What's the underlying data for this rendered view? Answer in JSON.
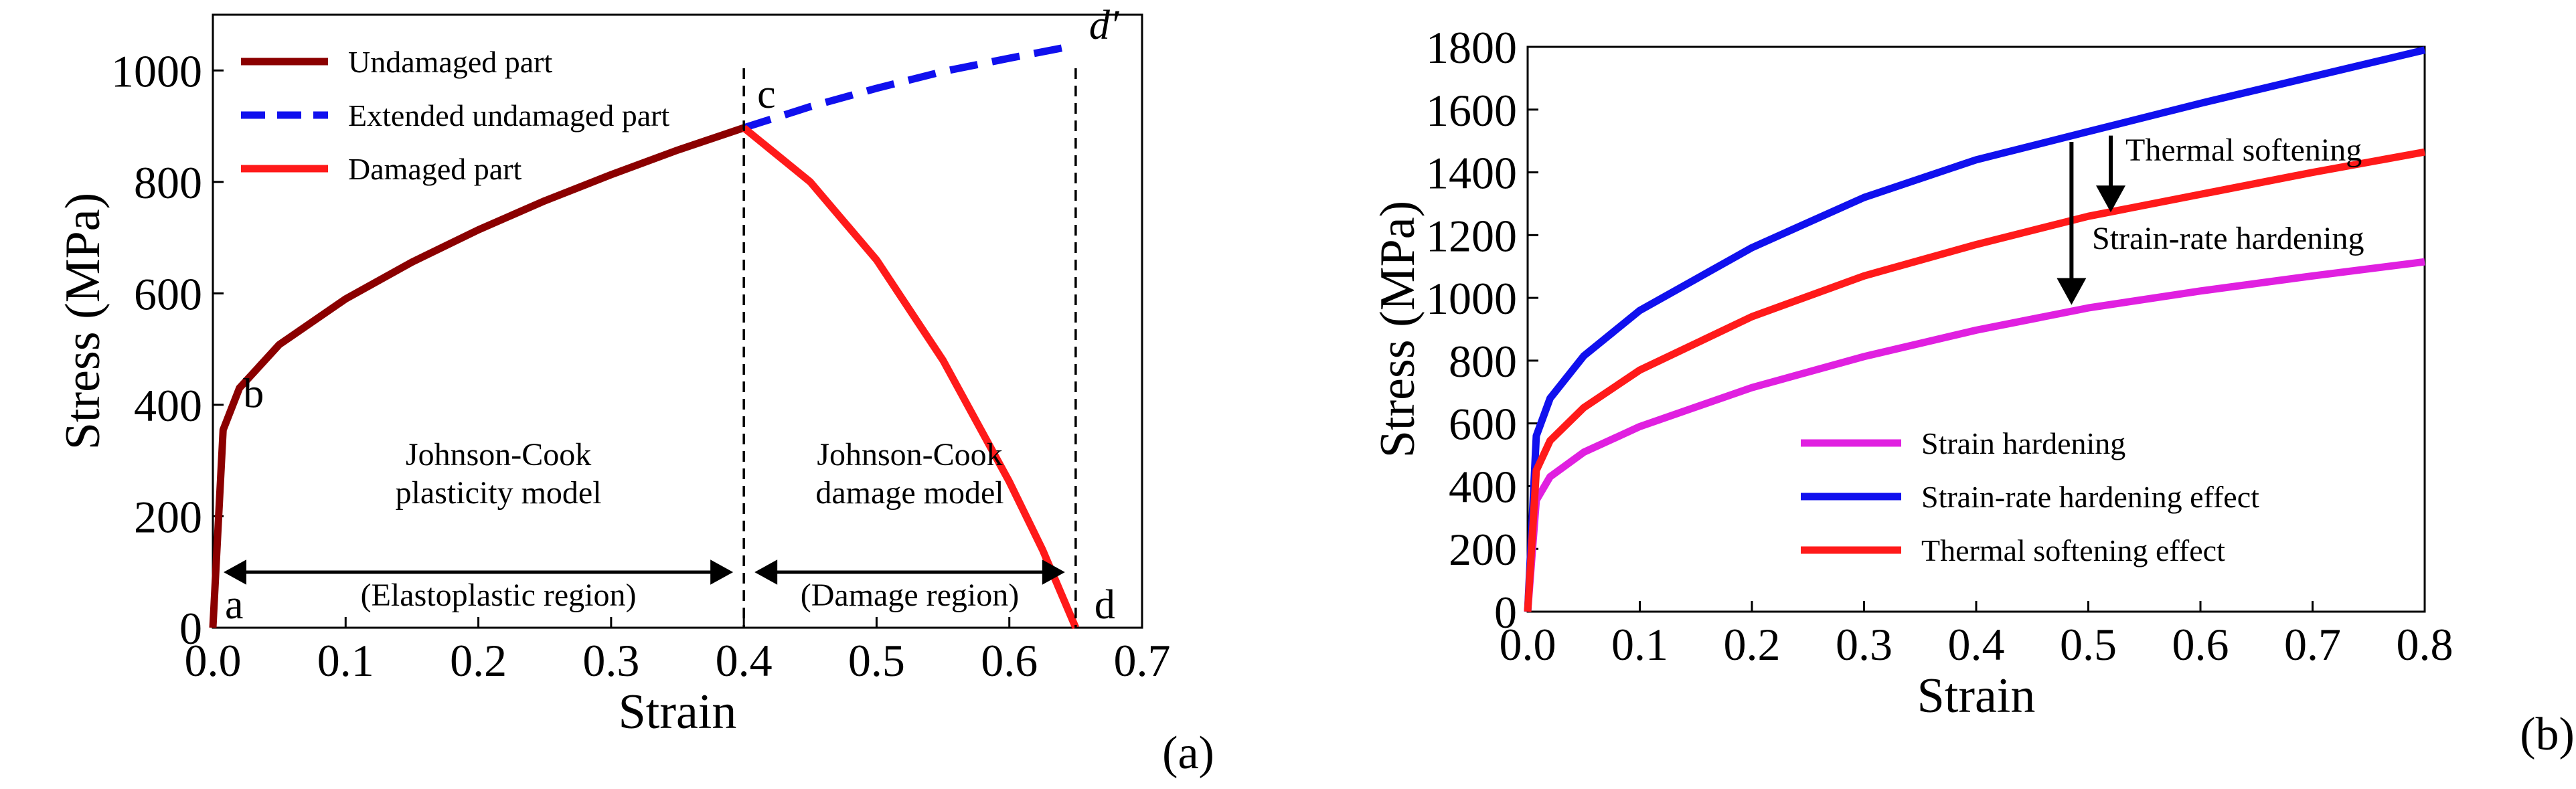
{
  "chart_data": [
    {
      "type": "line",
      "panel_label": "(a)",
      "xlabel": "Strain",
      "ylabel": "Stress (MPa)",
      "xlim": [
        0.0,
        0.7
      ],
      "ylim": [
        0,
        1100
      ],
      "xticks": [
        "0.0",
        "0.1",
        "0.2",
        "0.3",
        "0.4",
        "0.5",
        "0.6",
        "0.7"
      ],
      "yticks": [
        "0",
        "200",
        "400",
        "600",
        "800",
        "1000"
      ],
      "grid": false,
      "legend_placement": "top-left",
      "series": [
        {
          "name": "Undamaged part",
          "color": "#8b0000",
          "style": "solid",
          "points": [
            [
              0.0,
              0
            ],
            [
              0.0077,
              355
            ],
            [
              0.02,
              430
            ],
            [
              0.05,
              508
            ],
            [
              0.1,
              590
            ],
            [
              0.15,
              656
            ],
            [
              0.2,
              714
            ],
            [
              0.25,
              766
            ],
            [
              0.3,
              813
            ],
            [
              0.35,
              857
            ],
            [
              0.4,
              897
            ]
          ]
        },
        {
          "name": "Extended undamaged part",
          "color": "#1010ee",
          "style": "dashed",
          "points": [
            [
              0.4,
              897
            ],
            [
              0.45,
              935
            ],
            [
              0.5,
              968
            ],
            [
              0.55,
              998
            ],
            [
              0.6,
              1022
            ],
            [
              0.65,
              1045
            ]
          ]
        },
        {
          "name": "Damaged part",
          "color": "#ff1a1a",
          "style": "solid",
          "points": [
            [
              0.4,
              897
            ],
            [
              0.45,
              800
            ],
            [
              0.5,
              660
            ],
            [
              0.55,
              480
            ],
            [
              0.6,
              262
            ],
            [
              0.625,
              140
            ],
            [
              0.65,
              0
            ]
          ]
        }
      ],
      "point_labels": [
        {
          "text": "a",
          "x": 0.0,
          "y": 0
        },
        {
          "text": "b",
          "x": 0.0077,
          "y": 355
        },
        {
          "text": "c",
          "x": 0.4,
          "y": 897
        },
        {
          "text": "d",
          "x": 0.65,
          "y": 0
        },
        {
          "text": "d′",
          "x": 0.65,
          "y": 1045
        }
      ],
      "vertical_lines": [
        0.4,
        0.65
      ],
      "region_annotations": [
        {
          "model": "Johnson-Cook",
          "model_line2": "plasticity model",
          "region": "(Elastoplastic region)",
          "color": "#1010ee",
          "x_range": [
            0.0,
            0.4
          ]
        },
        {
          "model": "Johnson-Cook",
          "model_line2": "damage model",
          "region": "(Damage region)",
          "color": "#ff1a1a",
          "x_range": [
            0.4,
            0.65
          ]
        }
      ]
    },
    {
      "type": "line",
      "panel_label": "(b)",
      "xlabel": "Strain",
      "ylabel": "Stress (MPa)",
      "xlim": [
        0.0,
        0.8
      ],
      "ylim": [
        0,
        1800
      ],
      "xticks": [
        "0.0",
        "0.1",
        "0.2",
        "0.3",
        "0.4",
        "0.5",
        "0.6",
        "0.7",
        "0.8"
      ],
      "yticks": [
        "0",
        "200",
        "400",
        "600",
        "800",
        "1000",
        "1200",
        "1400",
        "1600",
        "1800"
      ],
      "grid": false,
      "legend_placement": "bottom-right",
      "series": [
        {
          "name": "Strain hardening",
          "color": "#e020e0",
          "style": "solid",
          "points": [
            [
              0.0,
              0
            ],
            [
              0.0077,
              355
            ],
            [
              0.02,
              430
            ],
            [
              0.05,
              508
            ],
            [
              0.1,
              590
            ],
            [
              0.2,
              714
            ],
            [
              0.3,
              813
            ],
            [
              0.4,
              897
            ],
            [
              0.5,
              968
            ],
            [
              0.6,
              1022
            ],
            [
              0.7,
              1070
            ],
            [
              0.8,
              1115
            ]
          ]
        },
        {
          "name": "Strain-rate hardening effect",
          "color": "#1010ee",
          "style": "solid",
          "points": [
            [
              0.0,
              0
            ],
            [
              0.0077,
              560
            ],
            [
              0.02,
              680
            ],
            [
              0.05,
              815
            ],
            [
              0.1,
              960
            ],
            [
              0.2,
              1160
            ],
            [
              0.3,
              1320
            ],
            [
              0.4,
              1440
            ],
            [
              0.5,
              1530
            ],
            [
              0.6,
              1620
            ],
            [
              0.7,
              1705
            ],
            [
              0.8,
              1790
            ]
          ]
        },
        {
          "name": "Thermal softening effect",
          "color": "#ff1a1a",
          "style": "solid",
          "points": [
            [
              0.0,
              0
            ],
            [
              0.0077,
              450
            ],
            [
              0.02,
              545
            ],
            [
              0.05,
              650
            ],
            [
              0.1,
              770
            ],
            [
              0.2,
              940
            ],
            [
              0.3,
              1070
            ],
            [
              0.4,
              1170
            ],
            [
              0.5,
              1260
            ],
            [
              0.6,
              1330
            ],
            [
              0.7,
              1400
            ],
            [
              0.8,
              1465
            ]
          ]
        }
      ],
      "annotations": [
        {
          "text": "Thermal softening",
          "arrow_x": 0.52,
          "from_y": 1530,
          "to_y": 1260
        },
        {
          "text": "Strain-rate hardening",
          "arrow_x": 0.485,
          "from_y": 1510,
          "to_y": 965
        }
      ]
    }
  ]
}
